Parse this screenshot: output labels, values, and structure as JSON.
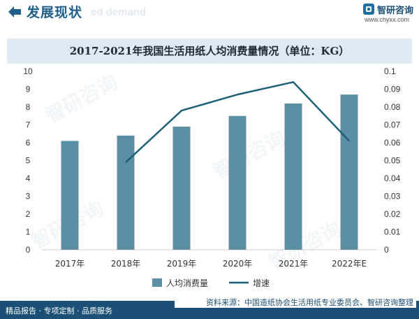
{
  "header": {
    "title": "发展现状",
    "ghost_text": "ed demand",
    "logo_name": "智研咨询",
    "logo_url": "www.chyxx.com"
  },
  "watermark": "智研咨询",
  "footer": {
    "left": "精品报告 · 专项定制 · 品质服务",
    "source": "资料来源：中国造纸协会生活用纸专业委员会、智研咨询整理"
  },
  "colors": {
    "bar": "#5b8fa6",
    "line": "#1c5f78",
    "title_band": "#dde9f3",
    "footer": "#1c4f75"
  },
  "chart_data": {
    "type": "bar",
    "title": "2017-2021年我国生活用纸人均消费量情况（单位：KG）",
    "categories": [
      "2017年",
      "2018年",
      "2019年",
      "2020年",
      "2021年",
      "2022年E"
    ],
    "series": [
      {
        "name": "人均消费量",
        "type": "bar",
        "axis": "left",
        "values": [
          6.1,
          6.4,
          6.9,
          7.5,
          8.2,
          8.7
        ]
      },
      {
        "name": "增速",
        "type": "line",
        "axis": "right",
        "values": [
          null,
          0.049,
          0.078,
          0.087,
          0.094,
          0.061
        ]
      }
    ],
    "y_left": {
      "ylim": [
        0,
        10
      ],
      "ticks": [
        "0",
        "1",
        "2",
        "3",
        "4",
        "5",
        "6",
        "7",
        "8",
        "9",
        "10"
      ]
    },
    "y_right": {
      "ylim": [
        0,
        0.1
      ],
      "ticks": [
        "0",
        "0.01",
        "0.02",
        "0.03",
        "0.04",
        "0.05",
        "0.06",
        "0.07",
        "0.08",
        "0.09",
        "0.1"
      ]
    },
    "legend_position": "bottom-center",
    "grid": false
  }
}
